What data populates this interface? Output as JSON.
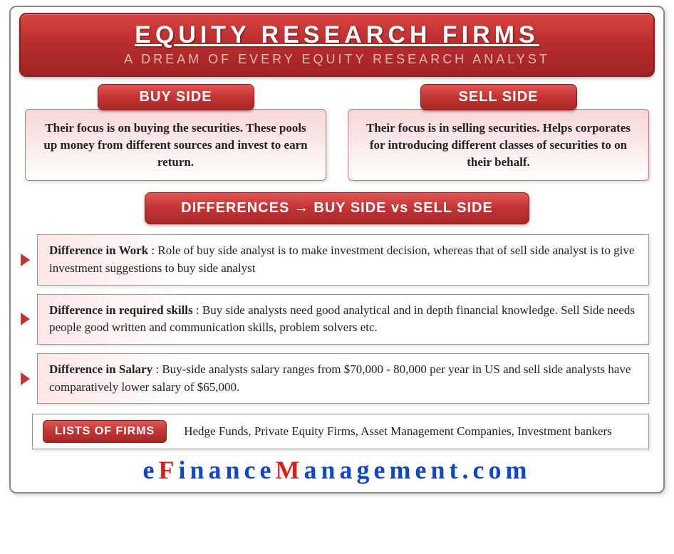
{
  "header": {
    "title": "EQUITY RESEARCH FIRMS",
    "subtitle": "A DREAM OF EVERY EQUITY RESEARCH ANALYST"
  },
  "buy_side": {
    "label": "BUY SIDE",
    "text": "Their focus is on buying the securities. These pools up money from different sources and invest to earn return."
  },
  "sell_side": {
    "label": "SELL SIDE",
    "text": "Their focus is in selling securities. Helps corporates for introducing different classes of securities to on their behalf."
  },
  "diff_header": "DIFFERENCES → BUY SIDE vs SELL SIDE",
  "differences": [
    {
      "title": "Difference in Work",
      "text": " : Role of buy side analyst is to make investment decision, whereas that of sell side analyst is to give investment suggestions to buy side analyst"
    },
    {
      "title": "Difference in required skills",
      "text": " : Buy side analysts need good analytical and in depth financial knowledge. Sell Side needs people good written and communication skills, problem solvers etc."
    },
    {
      "title": "Difference in Salary",
      "text": " : Buy-side analysts salary ranges from $70,000 - 80,000 per year in US and sell side analysts have comparatively lower salary of $65,000."
    }
  ],
  "firms": {
    "label": "LISTS OF FIRMS",
    "text": "Hedge Funds, Private Equity Firms, Asset Management Companies, Investment bankers"
  },
  "brand": {
    "parts": [
      {
        "t": "e",
        "c": "blue"
      },
      {
        "t": "F",
        "c": "red"
      },
      {
        "t": "inance",
        "c": "blue"
      },
      {
        "t": "M",
        "c": "red"
      },
      {
        "t": "anagement.com",
        "c": "blue"
      }
    ]
  },
  "colors": {
    "banner_gradient": [
      "#d94343",
      "#b82c2c",
      "#a02424"
    ],
    "banner_border": "#8a1f1f",
    "pink_box_gradient": [
      "#f8d6d6",
      "#fbeaea",
      "#ffffff"
    ],
    "arrow_color": "#c23434",
    "brand_blue": "#1246c8",
    "brand_red": "#de1b1b"
  }
}
